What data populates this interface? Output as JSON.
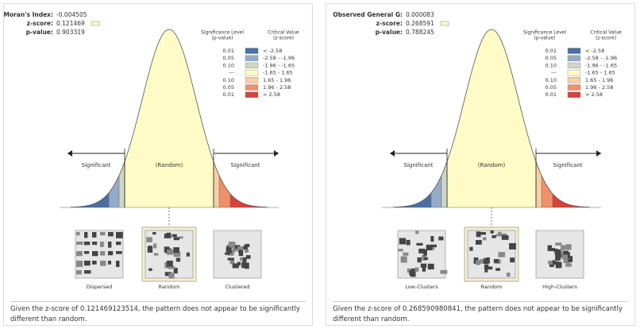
{
  "panels": [
    {
      "stats": [
        {
          "label": "Moran's Index:",
          "value": "-0.004505"
        },
        {
          "label": "z-score:",
          "value": "0.121469"
        },
        {
          "label": "p-value:",
          "value": "0.903319"
        }
      ],
      "legend": {
        "header_p": [
          "Significance Level",
          "(p-value)"
        ],
        "header_z": [
          "Critical Value",
          "(z-score)"
        ],
        "rows": [
          {
            "p": "0.01",
            "z": "< -2.58"
          },
          {
            "p": "0.05",
            "z": "-2.58 - -1.96"
          },
          {
            "p": "0.10",
            "z": "-1.96 - -1.65"
          },
          {
            "p": "---",
            "z": "-1.65 - 1.65"
          },
          {
            "p": "0.10",
            "z": "1.65 - 1.96"
          },
          {
            "p": "0.05",
            "z": "1.96 - 2.58"
          },
          {
            "p": "0.01",
            "z": "> 2.58"
          }
        ]
      },
      "left_label": "Significant",
      "center_label": "(Random)",
      "right_label": "Significant",
      "thumbnails": [
        "Dispersed",
        "Random",
        "Clustered"
      ],
      "caption": "Given the z-score of 0.121469123514, the pattern does not appear to be significantly different than random."
    },
    {
      "stats": [
        {
          "label": "Observed General G:",
          "value": "0.000083"
        },
        {
          "label": "z-score:",
          "value": "0.268591"
        },
        {
          "label": "p-value:",
          "value": "0.788245"
        }
      ],
      "legend": {
        "header_p": [
          "Significance Level",
          "(p-value)"
        ],
        "header_z": [
          "Critical Value",
          "(z-score)"
        ],
        "rows": [
          {
            "p": "0.01",
            "z": "< -2.58"
          },
          {
            "p": "0.05",
            "z": "-2.58 - -1.96"
          },
          {
            "p": "0.10",
            "z": "-1.96 - -1.65"
          },
          {
            "p": "---",
            "z": "-1.65 - 1.65"
          },
          {
            "p": "0.10",
            "z": "1.65 - 1.96"
          },
          {
            "p": "0.05",
            "z": "1.96 - 2.58"
          },
          {
            "p": "0.01",
            "z": "> 2.58"
          }
        ]
      },
      "left_label": "Significant",
      "center_label": "(Random)",
      "right_label": "Significant",
      "thumbnails": [
        "Low-Clusters",
        "Random",
        "High-Clusters"
      ],
      "caption": "Given the z-score of 0.268590980841, the pattern does not appear to be significantly different than random."
    }
  ]
}
